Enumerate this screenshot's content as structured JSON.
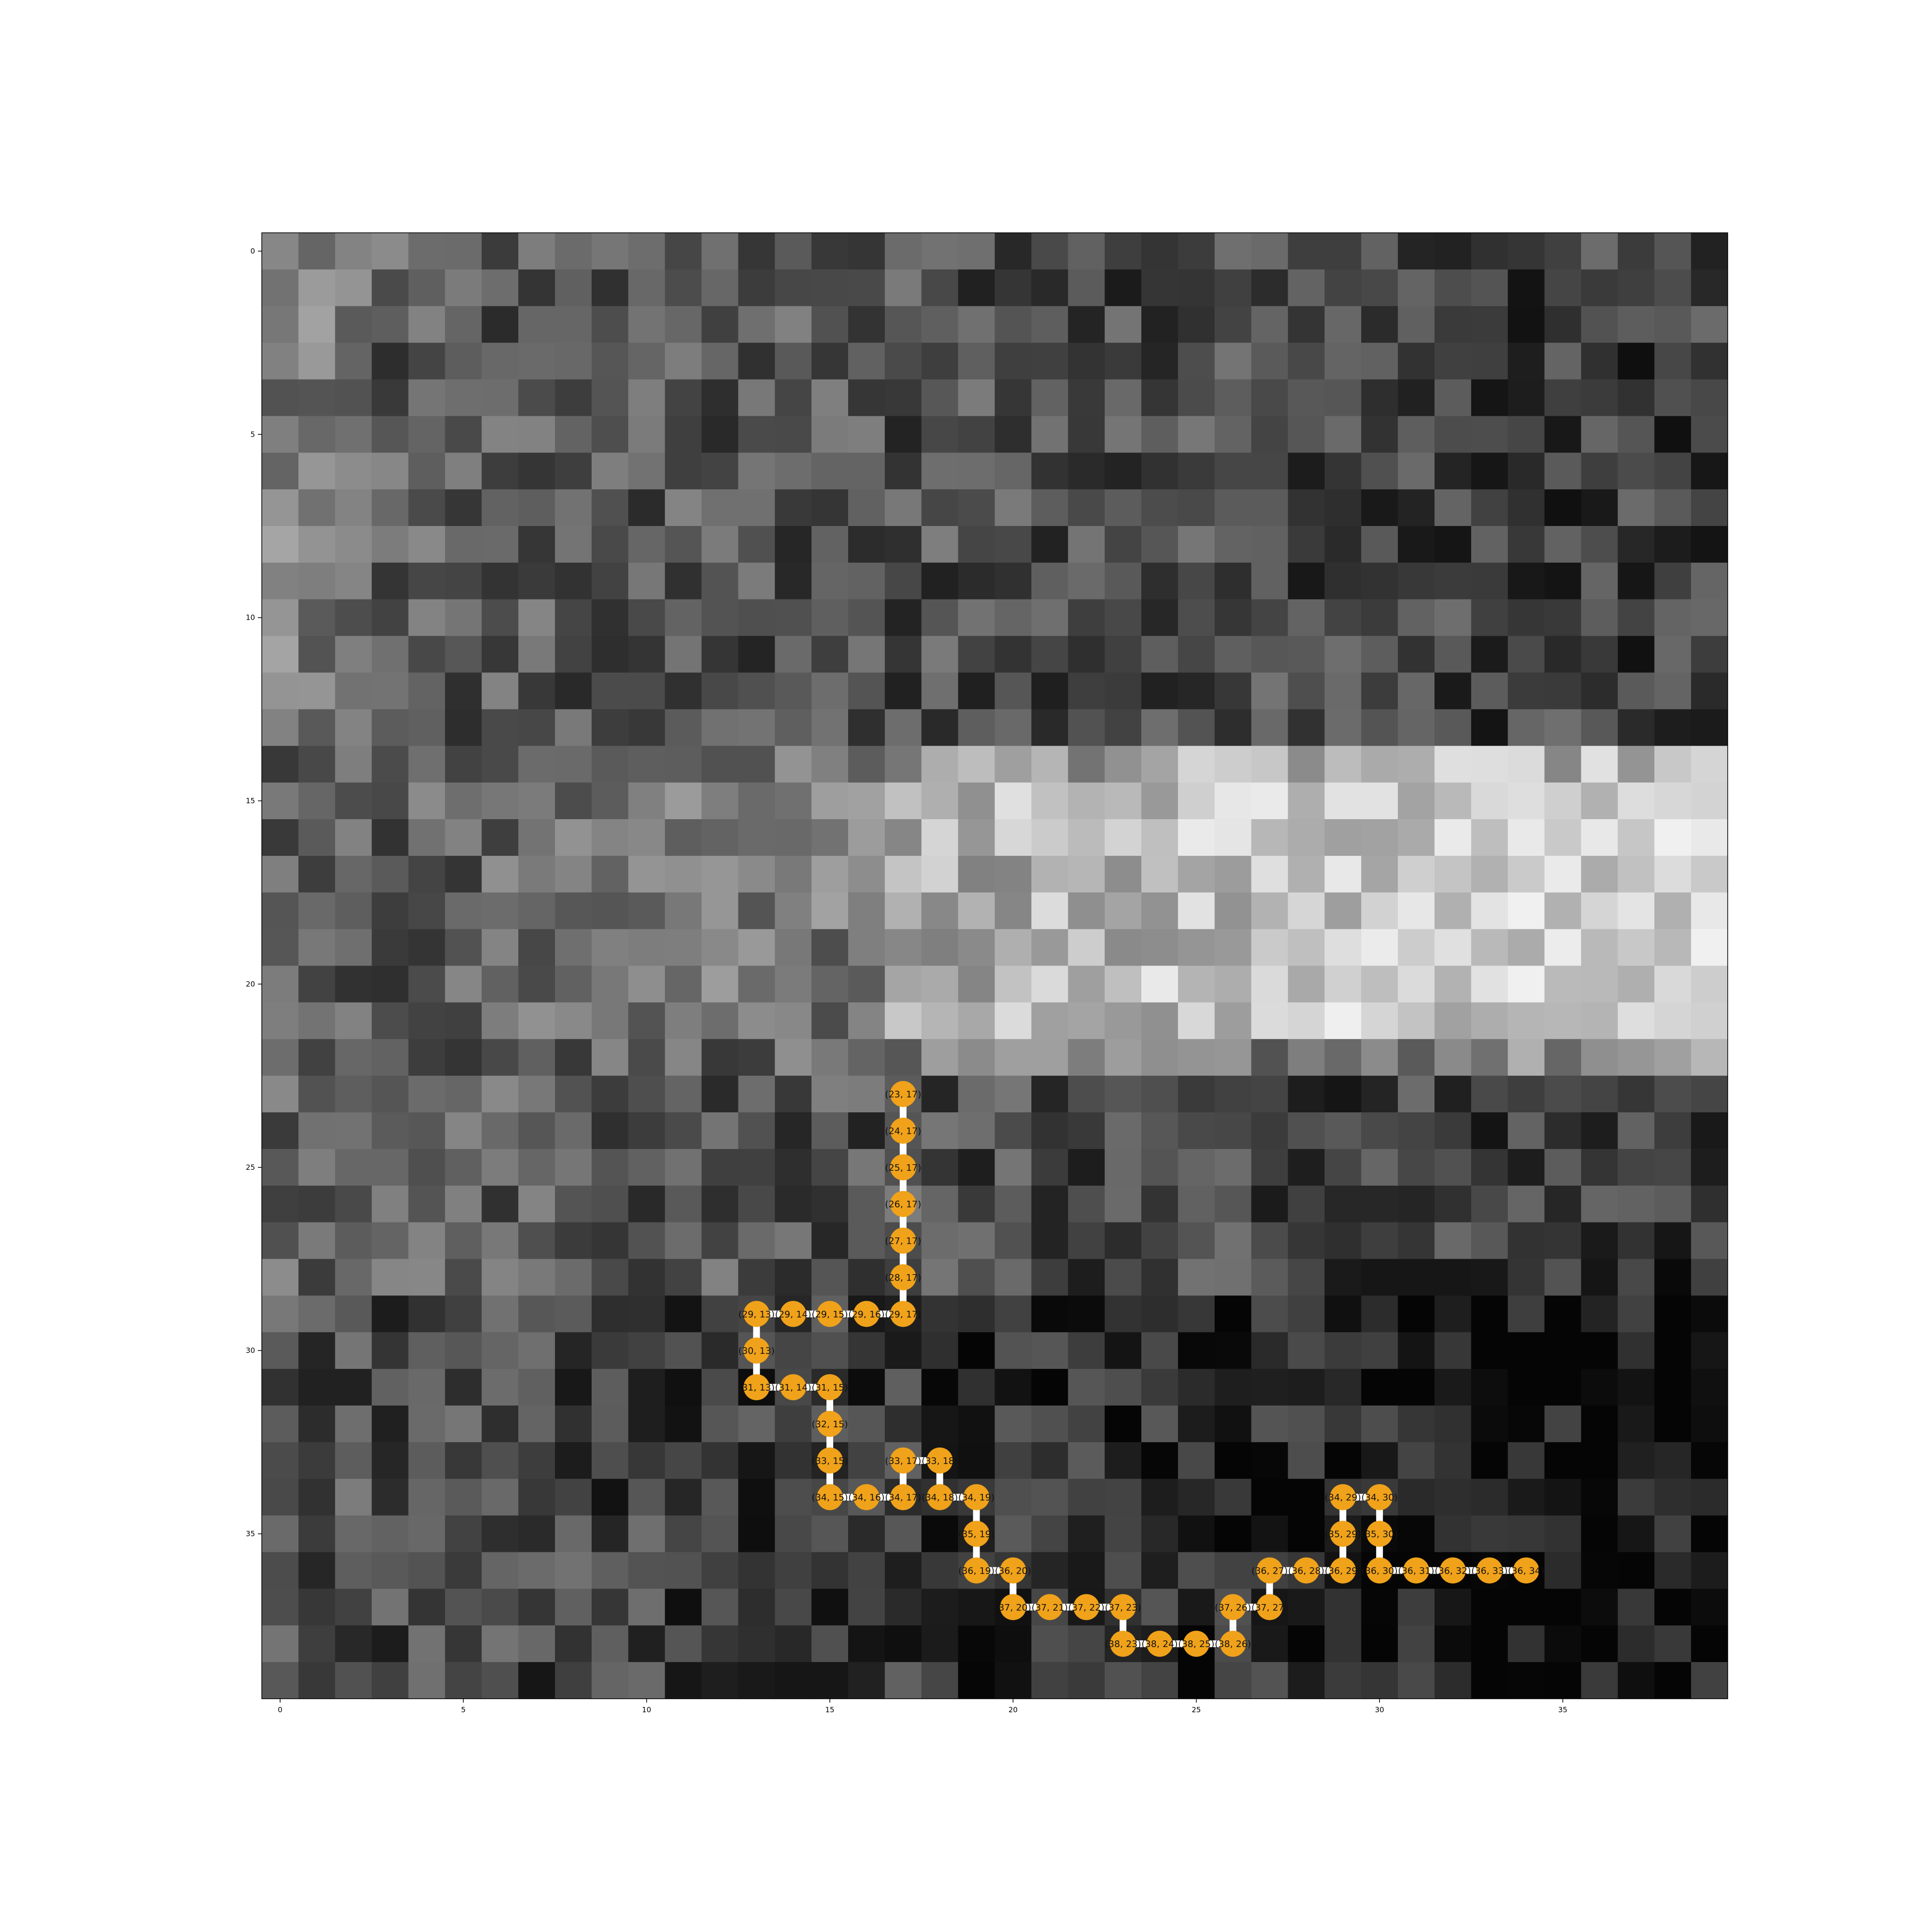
{
  "chart_data": {
    "type": "heatmap",
    "title": "",
    "xlabel": "",
    "ylabel": "",
    "grid_size": [
      40,
      40
    ],
    "colormap": "gray",
    "xlim": [
      0,
      39
    ],
    "ylim": [
      39,
      0
    ],
    "x_ticks": [
      "0",
      "5",
      "10",
      "15",
      "20",
      "25",
      "30",
      "35"
    ],
    "y_ticks": [
      "0",
      "5",
      "10",
      "15",
      "20",
      "25",
      "30",
      "35"
    ],
    "overlay": {
      "type": "path-graph",
      "node_color": "#f0a21a",
      "edge_color": "#ffffff",
      "nodes": [
        {
          "r": 23,
          "c": 17,
          "label": "(23, 17)"
        },
        {
          "r": 24,
          "c": 17,
          "label": "(24, 17)"
        },
        {
          "r": 25,
          "c": 17,
          "label": "(25, 17)"
        },
        {
          "r": 26,
          "c": 17,
          "label": "(26, 17)"
        },
        {
          "r": 27,
          "c": 17,
          "label": "(27, 17)"
        },
        {
          "r": 28,
          "c": 17,
          "label": "(28, 17)"
        },
        {
          "r": 29,
          "c": 17,
          "label": "(29, 17)"
        },
        {
          "r": 29,
          "c": 16,
          "label": "(29, 16)"
        },
        {
          "r": 29,
          "c": 15,
          "label": "(29, 15)"
        },
        {
          "r": 29,
          "c": 14,
          "label": "(29, 14)"
        },
        {
          "r": 29,
          "c": 13,
          "label": "(29, 13)"
        },
        {
          "r": 30,
          "c": 13,
          "label": "(30, 13)"
        },
        {
          "r": 31,
          "c": 13,
          "label": "(31, 13)"
        },
        {
          "r": 31,
          "c": 14,
          "label": "(31, 14)"
        },
        {
          "r": 31,
          "c": 15,
          "label": "(31, 15)"
        },
        {
          "r": 32,
          "c": 15,
          "label": "(32, 15)"
        },
        {
          "r": 33,
          "c": 15,
          "label": "(33, 15)"
        },
        {
          "r": 34,
          "c": 15,
          "label": "(34, 15)"
        },
        {
          "r": 34,
          "c": 16,
          "label": "(34, 16)"
        },
        {
          "r": 34,
          "c": 17,
          "label": "(34, 17)"
        },
        {
          "r": 33,
          "c": 17,
          "label": "(33, 17)"
        },
        {
          "r": 33,
          "c": 18,
          "label": "(33, 18)"
        },
        {
          "r": 34,
          "c": 18,
          "label": "(34, 18)"
        },
        {
          "r": 34,
          "c": 19,
          "label": "(34, 19)"
        },
        {
          "r": 35,
          "c": 19,
          "label": "(35, 19)"
        },
        {
          "r": 36,
          "c": 19,
          "label": "(36, 19)"
        },
        {
          "r": 36,
          "c": 20,
          "label": "(36, 20)"
        },
        {
          "r": 37,
          "c": 20,
          "label": "(37, 20)"
        },
        {
          "r": 37,
          "c": 21,
          "label": "(37, 21)"
        },
        {
          "r": 37,
          "c": 22,
          "label": "(37, 22)"
        },
        {
          "r": 37,
          "c": 23,
          "label": "(37, 23)"
        },
        {
          "r": 38,
          "c": 23,
          "label": "(38, 23)"
        },
        {
          "r": 38,
          "c": 24,
          "label": "(38, 24)"
        },
        {
          "r": 38,
          "c": 25,
          "label": "(38, 25)"
        },
        {
          "r": 38,
          "c": 26,
          "label": "(38, 26)"
        },
        {
          "r": 37,
          "c": 26,
          "label": "(37, 26)"
        },
        {
          "r": 37,
          "c": 27,
          "label": "(37, 27)"
        },
        {
          "r": 36,
          "c": 27,
          "label": "(36, 27)"
        },
        {
          "r": 36,
          "c": 28,
          "label": "(36, 28)"
        },
        {
          "r": 36,
          "c": 29,
          "label": "(36, 29)"
        },
        {
          "r": 35,
          "c": 29,
          "label": "(35, 29)"
        },
        {
          "r": 34,
          "c": 29,
          "label": "(34, 29)"
        },
        {
          "r": 34,
          "c": 30,
          "label": "(34, 30)"
        },
        {
          "r": 35,
          "c": 30,
          "label": "(35, 30)"
        },
        {
          "r": 36,
          "c": 30,
          "label": "(36, 30)"
        },
        {
          "r": 36,
          "c": 31,
          "label": "(36, 31)"
        },
        {
          "r": 36,
          "c": 32,
          "label": "(36, 32)"
        },
        {
          "r": 36,
          "c": 33,
          "label": "(36, 33)"
        },
        {
          "r": 36,
          "c": 34,
          "label": "(36, 34)"
        }
      ]
    }
  }
}
